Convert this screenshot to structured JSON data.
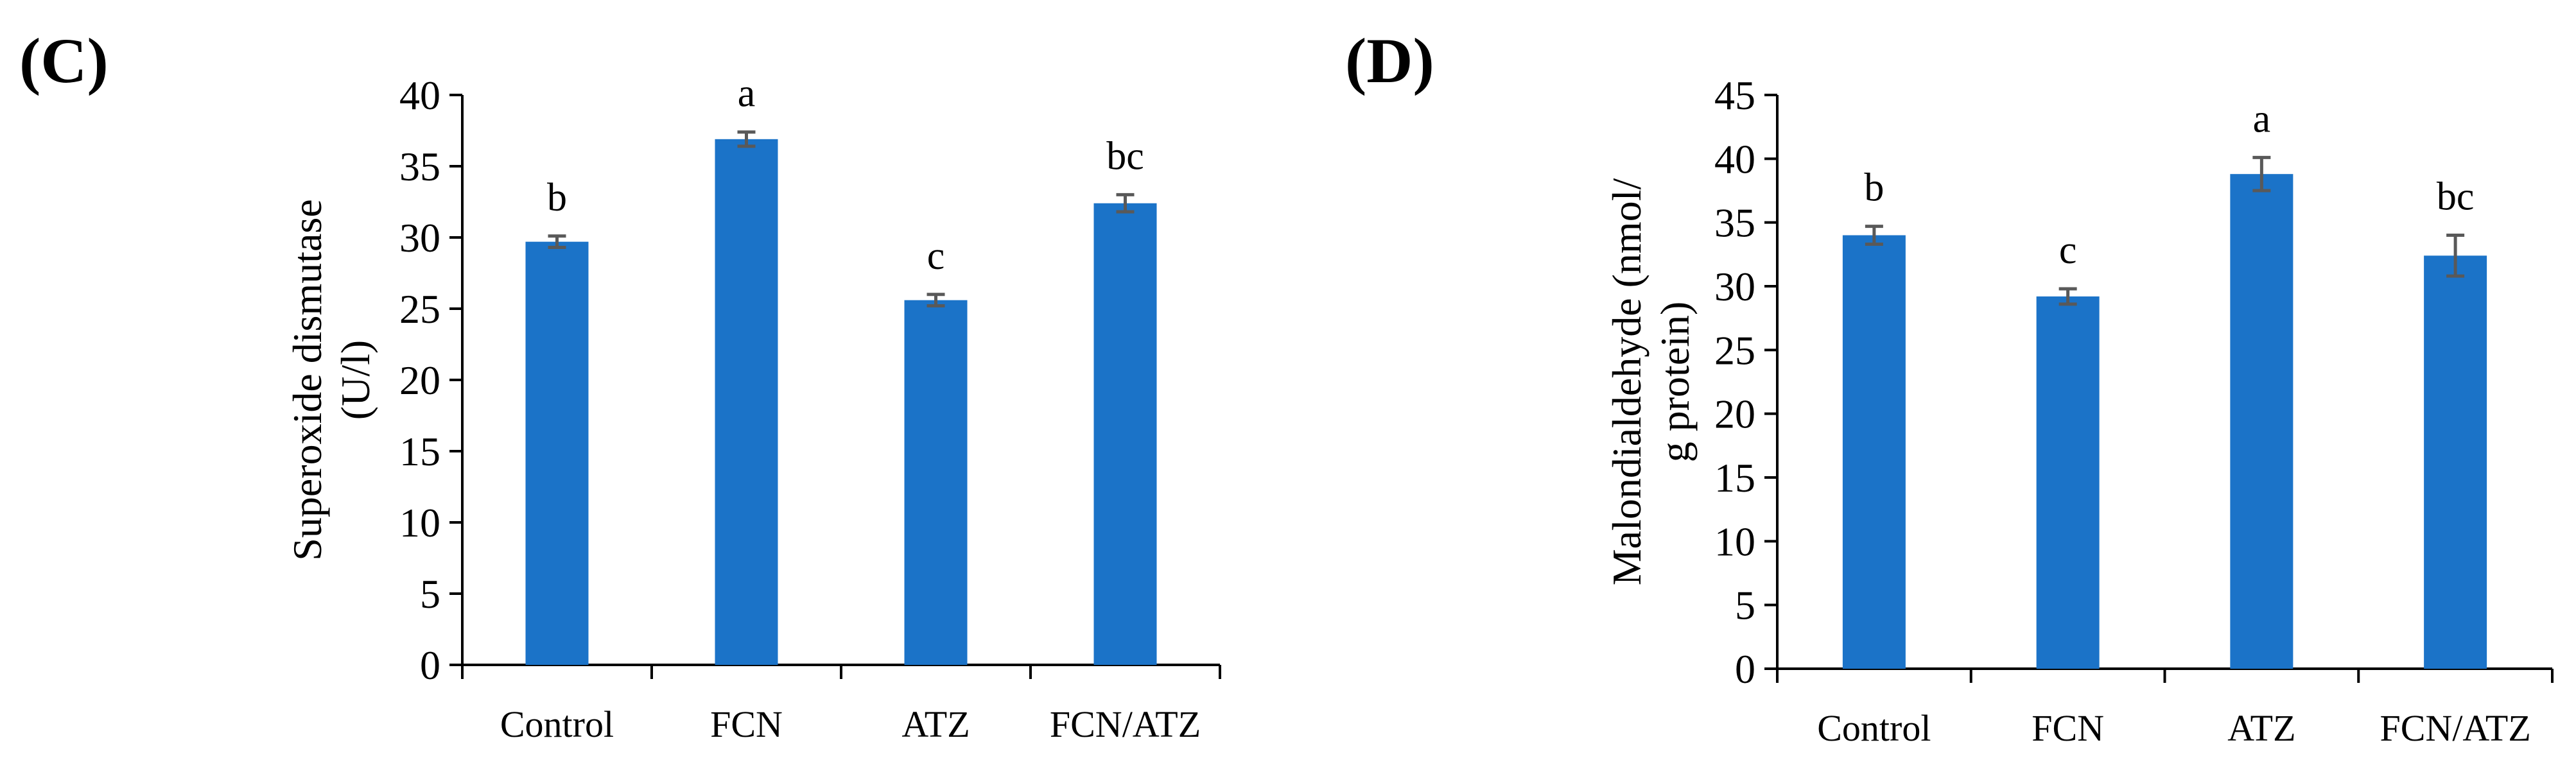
{
  "chart_data": [
    {
      "panel_label": "(C)",
      "type": "bar",
      "categories": [
        "Control",
        "FCN",
        "ATZ",
        "FCN/ATZ"
      ],
      "values": [
        29.7,
        36.9,
        25.6,
        32.4
      ],
      "errors": [
        0.4,
        0.5,
        0.4,
        0.6
      ],
      "significance": [
        "b",
        "a",
        "c",
        "bc"
      ],
      "ylabel": [
        "Superoxide dismutase",
        "(U/l)"
      ],
      "xlabel": "",
      "ylim": [
        0,
        40
      ],
      "yticks": [
        0,
        5,
        10,
        15,
        20,
        25,
        30,
        35,
        40
      ],
      "bar_color": "#1B73C8",
      "error_color": "#595959",
      "grid": false,
      "legend": "none"
    },
    {
      "panel_label": "(D)",
      "type": "bar",
      "categories": [
        "Control",
        "FCN",
        "ATZ",
        "FCN/ATZ"
      ],
      "values": [
        34.0,
        29.2,
        38.8,
        32.4
      ],
      "errors": [
        0.7,
        0.6,
        1.3,
        1.6
      ],
      "significance": [
        "b",
        "c",
        "a",
        "bc"
      ],
      "ylabel": [
        "Malondialdehyde  (nmol/",
        "g protein)"
      ],
      "xlabel": "",
      "ylim": [
        0,
        45
      ],
      "yticks": [
        0,
        5,
        10,
        15,
        20,
        25,
        30,
        35,
        40,
        45
      ],
      "bar_color": "#1B73C8",
      "error_color": "#595959",
      "grid": false,
      "legend": "none"
    }
  ]
}
